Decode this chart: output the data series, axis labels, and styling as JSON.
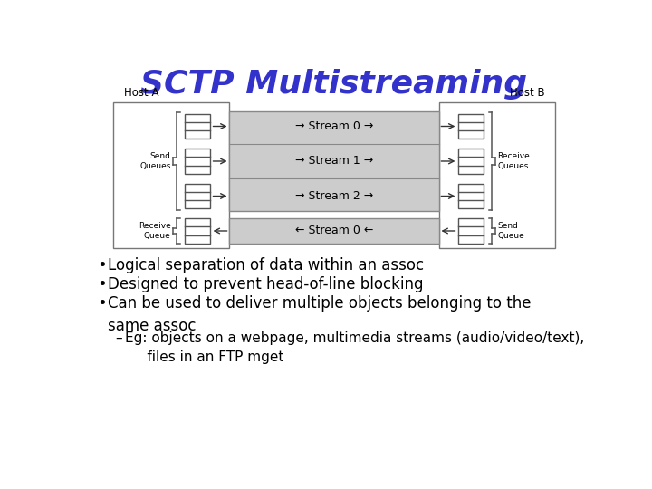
{
  "title": "SCTP Multistreaming",
  "title_color": "#3333cc",
  "title_fontsize": 26,
  "bg_color": "#ffffff",
  "diagram": {
    "host_a_label": "Host A",
    "host_b_label": "Host B",
    "send_queues_label": "Send\nQueues",
    "receive_queue_label": "Receive\nQueue",
    "receive_queues_label": "Receive\nQueues",
    "send_queue_label": "Send\nQueue",
    "streams_forward": [
      "→ Stream 0 →",
      "→ Stream 1 →",
      "→ Stream 2 →"
    ],
    "stream_backward": "← Stream 0 ←",
    "stream_box_color": "#cccccc",
    "edge_color": "#777777",
    "outer_box_color": "#ffffff"
  },
  "bullets": [
    "Logical separation of data within an assoc",
    "Designed to prevent head-of-line blocking",
    "Can be used to deliver multiple objects belonging to the\nsame assoc"
  ],
  "sub_bullet": "Eg: objects on a webpage, multimedia streams (audio/video/text),\n     files in an FTP mget",
  "bullet_fontsize": 12,
  "sub_bullet_fontsize": 11,
  "text_color": "#000000"
}
